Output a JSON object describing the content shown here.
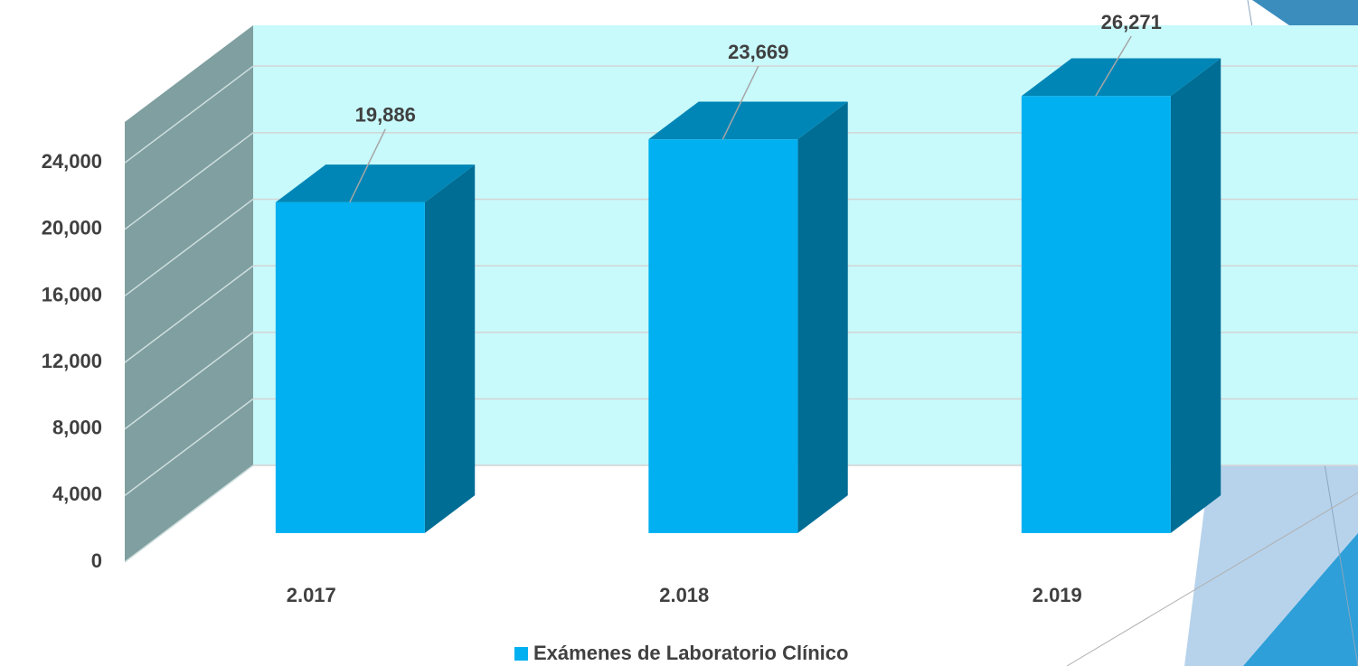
{
  "chart_data": {
    "type": "bar3d",
    "categories": [
      "2.017",
      "2.018",
      "2.019"
    ],
    "series": [
      {
        "name": "Exámenes de Laboratorio Clínico",
        "color": "#00b0f0",
        "values": [
          19886,
          23669,
          26271
        ],
        "value_labels": [
          "19,886",
          "23,669",
          "26,271"
        ]
      }
    ],
    "ylim": [
      0,
      26400
    ],
    "yticks": [
      0,
      {
        "value": 4000,
        "label": "4,000"
      },
      {
        "value": 8000,
        "label": "8,000"
      },
      {
        "value": 12000,
        "label": "12,000"
      },
      {
        "value": 16000,
        "label": "16,000"
      },
      {
        "value": 20000,
        "label": "20,000"
      },
      {
        "value": 24000,
        "label": "24,000"
      }
    ],
    "grid": true
  }
}
